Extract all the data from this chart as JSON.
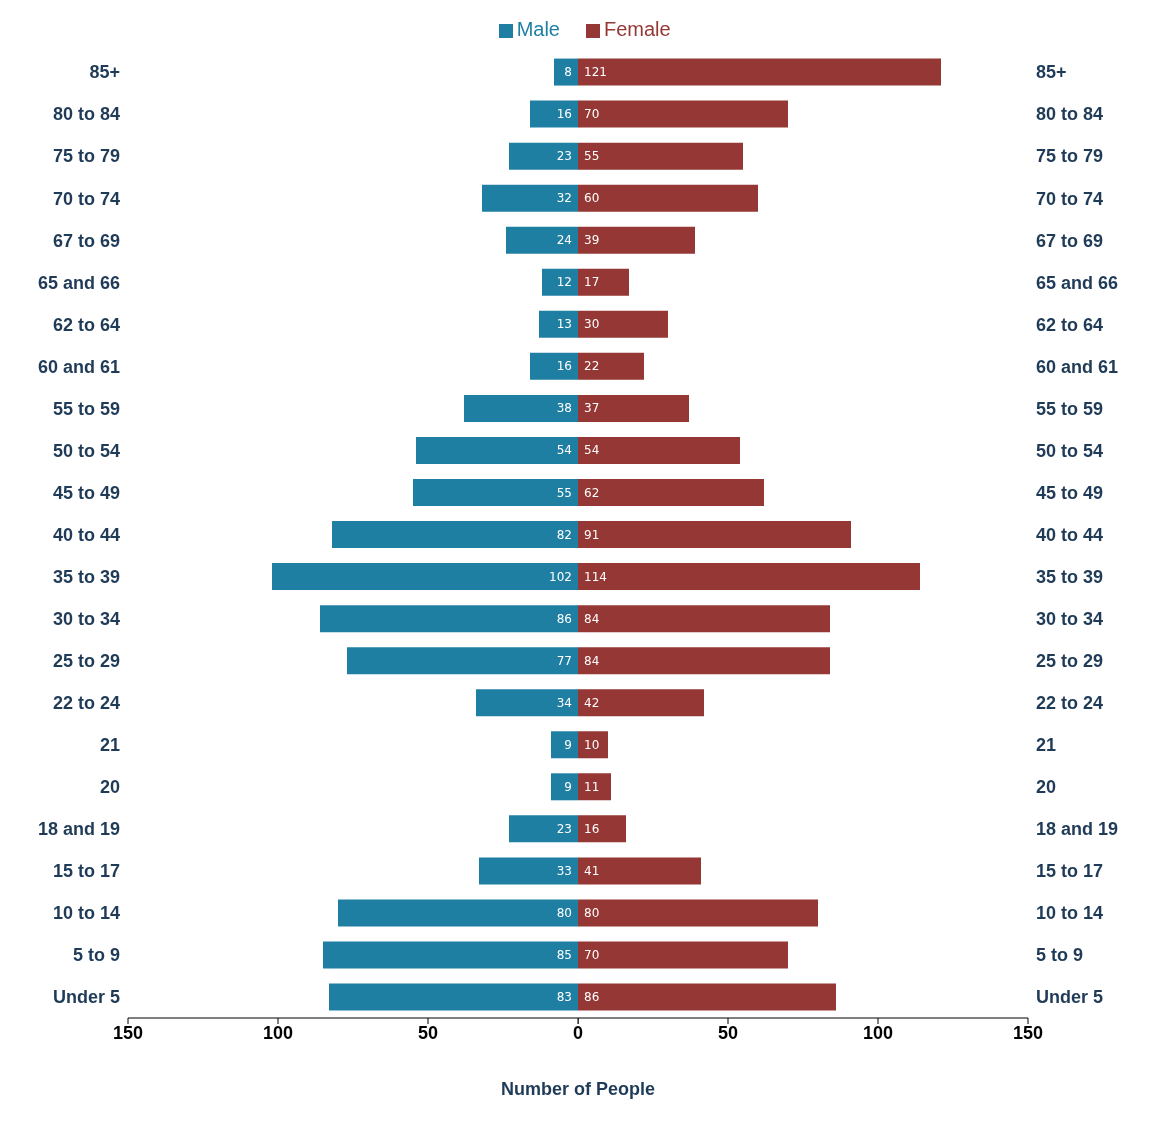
{
  "chart_data": [
    {
      "type": "bar",
      "orientation": "horizontal",
      "xlabel": "Number of People",
      "legend": "top",
      "data_labels": true,
      "categories": [
        "85+",
        "80 to 84",
        "75 to 79",
        "70 to 74",
        "67 to 69",
        "65 and 66",
        "62 to 64",
        "60 and 61",
        "55 to 59",
        "50 to 54",
        "45 to 49",
        "40 to 44",
        "35 to 39",
        "30 to 34",
        "25 to 29",
        "22 to 24",
        "21",
        "20",
        "18 and 19",
        "15 to 17",
        "10 to 14",
        "5 to 9",
        "Under 5"
      ],
      "series": [
        {
          "name": "Male",
          "color": "#1f7fa3",
          "values": [
            8,
            16,
            23,
            32,
            24,
            12,
            13,
            16,
            38,
            54,
            55,
            82,
            102,
            86,
            77,
            34,
            9,
            9,
            23,
            33,
            80,
            85,
            83
          ]
        }
      ],
      "xlim": [
        150,
        0
      ],
      "xticks": [
        150,
        100,
        50,
        0
      ],
      "grid": false
    },
    {
      "type": "bar",
      "orientation": "horizontal",
      "legend": "top",
      "data_labels": true,
      "categories": [
        "85+",
        "80 to 84",
        "75 to 79",
        "70 to 74",
        "67 to 69",
        "65 and 66",
        "62 to 64",
        "60 and 61",
        "55 to 59",
        "50 to 54",
        "45 to 49",
        "40 to 44",
        "35 to 39",
        "30 to 34",
        "25 to 29",
        "22 to 24",
        "21",
        "20",
        "18 and 19",
        "15 to 17",
        "10 to 14",
        "5 to 9",
        "Under 5"
      ],
      "series": [
        {
          "name": "Female",
          "color": "#953735",
          "values": [
            121,
            70,
            55,
            60,
            39,
            17,
            30,
            22,
            37,
            54,
            62,
            91,
            114,
            84,
            84,
            42,
            10,
            11,
            16,
            41,
            80,
            70,
            86
          ]
        }
      ],
      "xlim": [
        0,
        150
      ],
      "xticks": [
        {
          "value": 0,
          "label": null
        },
        50,
        100,
        150
      ],
      "grid": false
    }
  ]
}
